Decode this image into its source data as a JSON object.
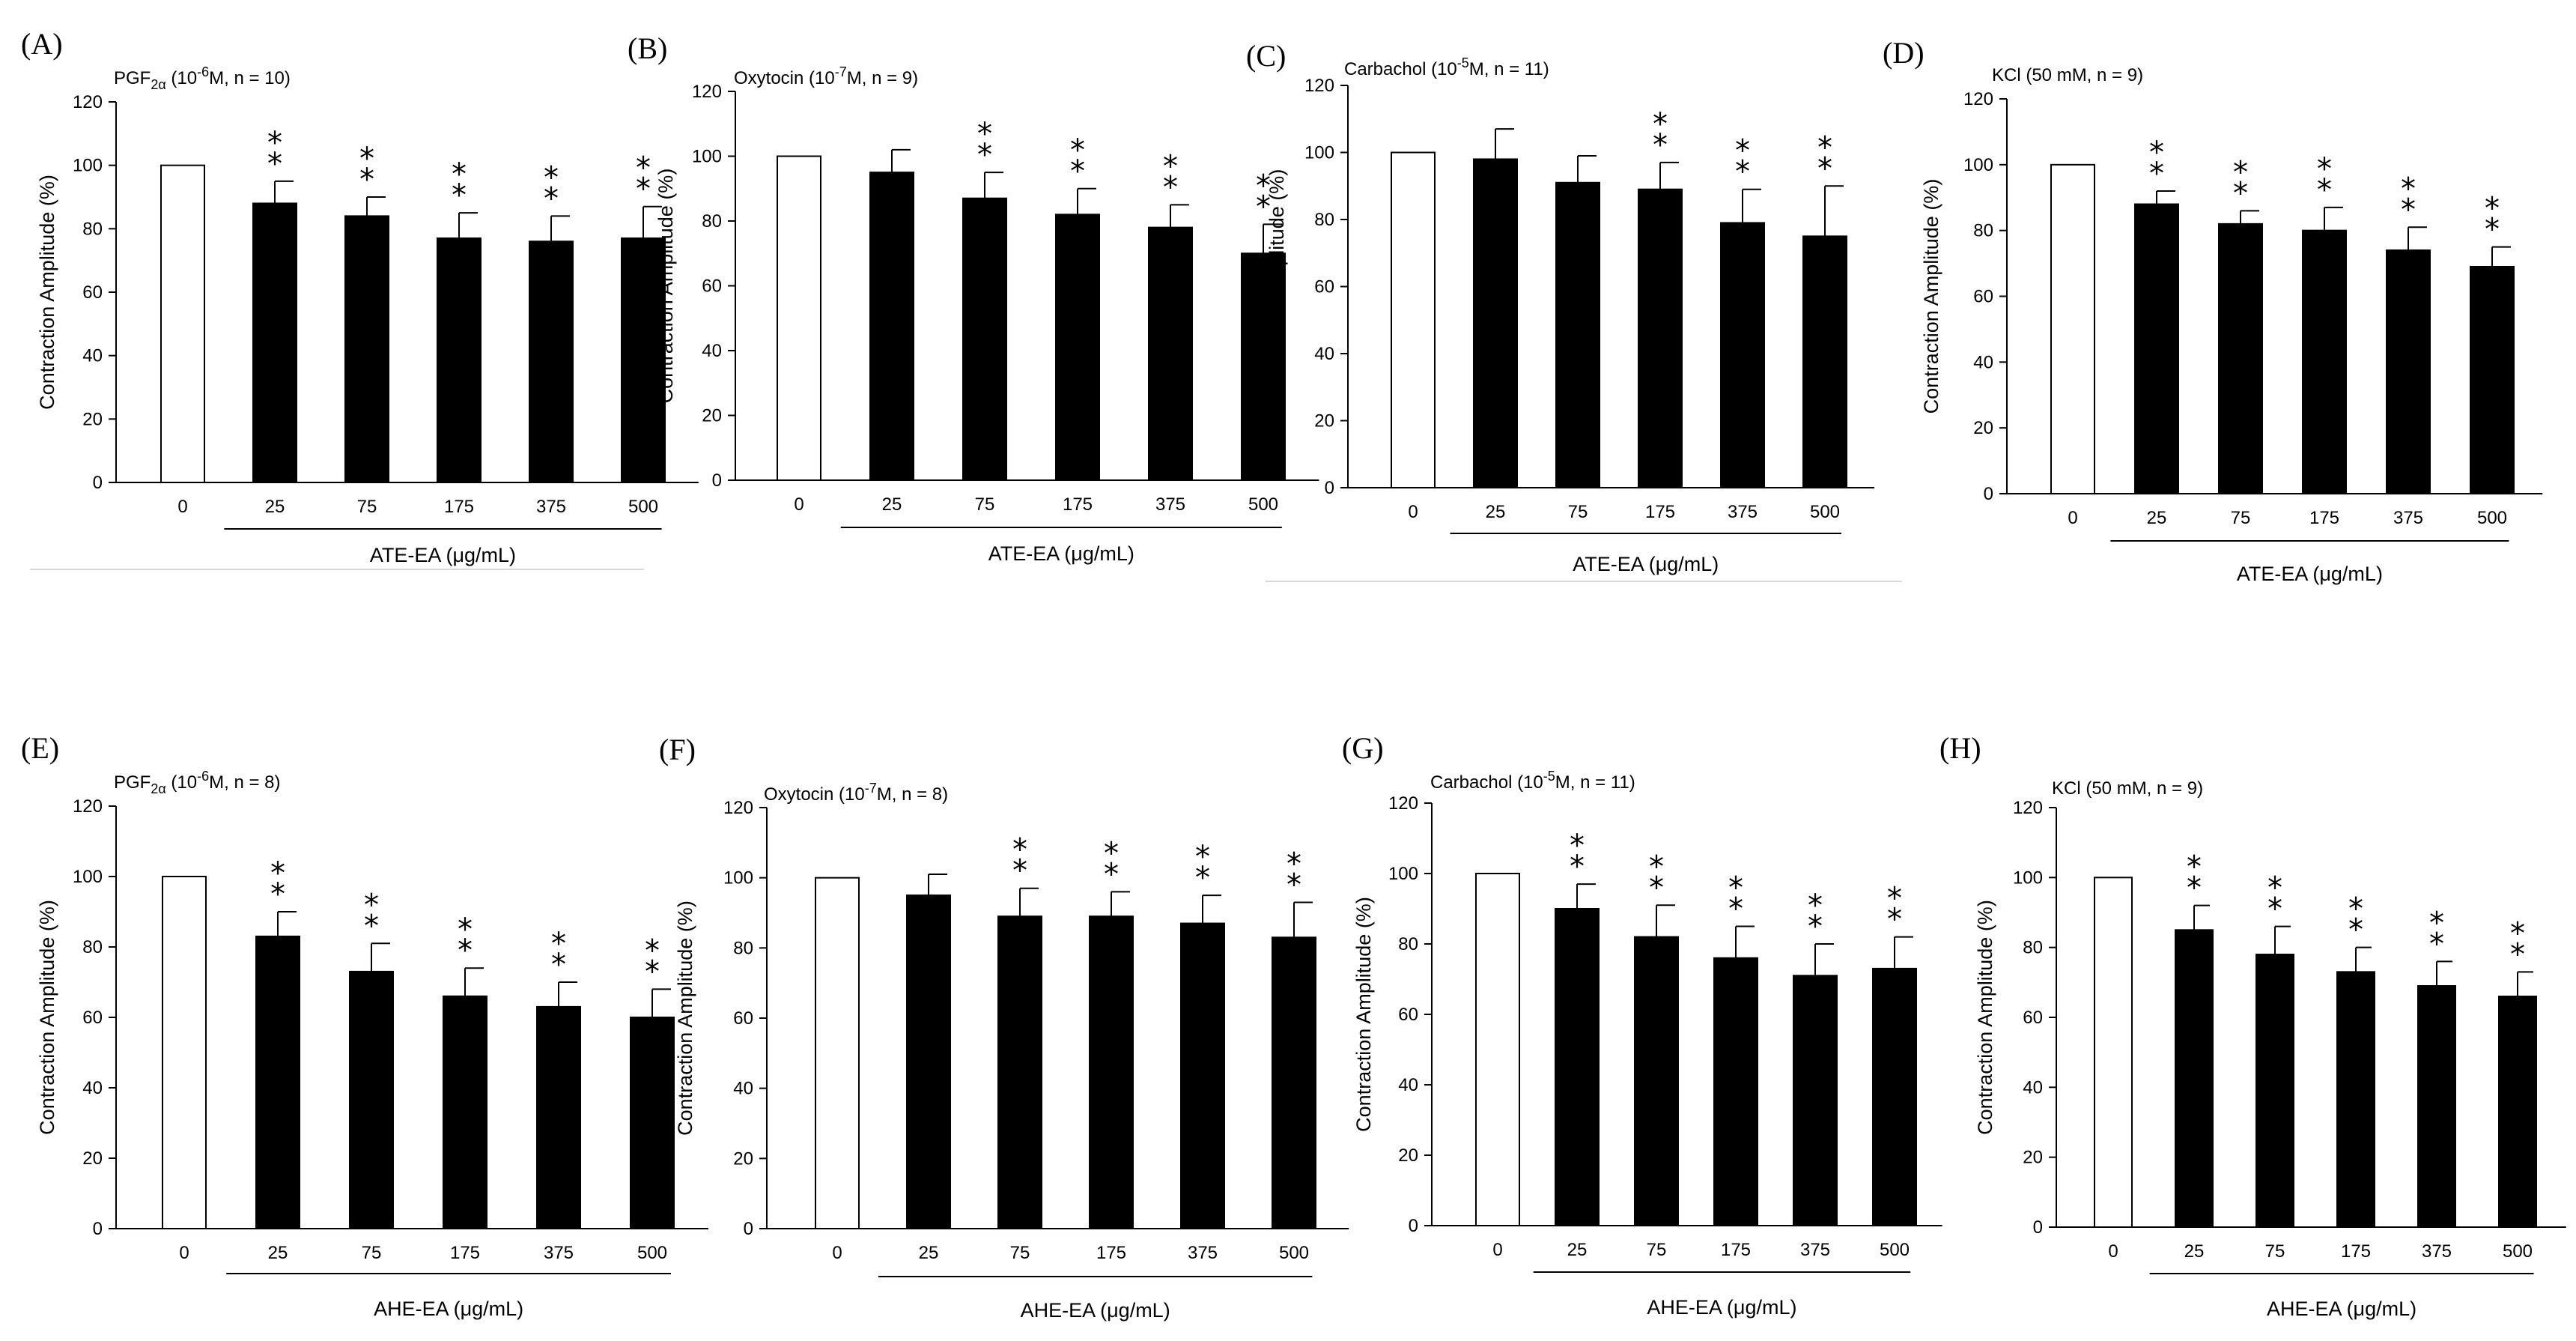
{
  "chart_data": [
    {
      "panel": "(A)",
      "type": "bar",
      "condition": {
        "main": "PGF",
        "sub": "2α",
        "rest": " (10",
        "sup": "-6",
        "tail": "M, n = 10)"
      },
      "categories": [
        "0",
        "25",
        "75",
        "175",
        "375",
        "500"
      ],
      "values": [
        100,
        88,
        84,
        77,
        76,
        77
      ],
      "errors": [
        0,
        7,
        6,
        8,
        8,
        10
      ],
      "significance": [
        "",
        "**",
        "**",
        "**",
        "**",
        "**"
      ],
      "ylabel": "Contraction Amplitude (%)",
      "xlabel": "ATE-EA (μg/mL)",
      "yticks": [
        "0",
        "20",
        "40",
        "60",
        "80",
        "100",
        "120"
      ],
      "ylim": [
        0,
        120
      ]
    },
    {
      "panel": "(B)",
      "type": "bar",
      "condition": {
        "main": "Oxytocin",
        "sub": "",
        "rest": " (10",
        "sup": "-7",
        "tail": "M, n = 9)"
      },
      "categories": [
        "0",
        "25",
        "75",
        "175",
        "375",
        "500"
      ],
      "values": [
        100,
        95,
        87,
        82,
        78,
        70
      ],
      "errors": [
        0,
        7,
        8,
        8,
        7,
        9
      ],
      "significance": [
        "",
        "",
        "**",
        "**",
        "**",
        "**"
      ],
      "ylabel": "Contraction Amplitude (%)",
      "xlabel": "ATE-EA (μg/mL)",
      "yticks": [
        "0",
        "20",
        "40",
        "60",
        "80",
        "100",
        "120"
      ],
      "ylim": [
        0,
        120
      ]
    },
    {
      "panel": "(C)",
      "type": "bar",
      "condition": {
        "main": "Carbachol",
        "sub": "",
        "rest": " (10",
        "sup": "-5",
        "tail": "M, n = 11)"
      },
      "categories": [
        "0",
        "25",
        "75",
        "175",
        "375",
        "500"
      ],
      "values": [
        100,
        98,
        91,
        89,
        79,
        75
      ],
      "errors": [
        0,
        9,
        8,
        8,
        10,
        15
      ],
      "significance": [
        "",
        "",
        "",
        "**",
        "**",
        "**"
      ],
      "ylabel": "Contraction Amplitude (%)",
      "xlabel": "ATE-EA (μg/mL)",
      "yticks": [
        "0",
        "20",
        "40",
        "60",
        "80",
        "100",
        "120"
      ],
      "ylim": [
        0,
        120
      ]
    },
    {
      "panel": "(D)",
      "type": "bar",
      "condition": {
        "main": "KCl",
        "sub": "",
        "rest": " (50 mM, n = 9)",
        "sup": "",
        "tail": ""
      },
      "categories": [
        "0",
        "25",
        "75",
        "175",
        "375",
        "500"
      ],
      "values": [
        100,
        88,
        82,
        80,
        74,
        69
      ],
      "errors": [
        0,
        4,
        4,
        7,
        7,
        6
      ],
      "significance": [
        "",
        "**",
        "**",
        "**",
        "**",
        "**"
      ],
      "ylabel": "Contraction Amplitude (%)",
      "xlabel": "ATE-EA (μg/mL)",
      "yticks": [
        "0",
        "20",
        "40",
        "60",
        "80",
        "100",
        "120"
      ],
      "ylim": [
        0,
        120
      ]
    },
    {
      "panel": "(E)",
      "type": "bar",
      "condition": {
        "main": "PGF",
        "sub": "2α",
        "rest": " (10",
        "sup": "-6",
        "tail": "M, n = 8)"
      },
      "categories": [
        "0",
        "25",
        "75",
        "175",
        "375",
        "500"
      ],
      "values": [
        100,
        83,
        73,
        66,
        63,
        60
      ],
      "errors": [
        0,
        7,
        8,
        8,
        7,
        8
      ],
      "significance": [
        "",
        "**",
        "**",
        "**",
        "**",
        "**"
      ],
      "ylabel": "Contraction Amplitude (%)",
      "xlabel": "AHE-EA (μg/mL)",
      "yticks": [
        "0",
        "20",
        "40",
        "60",
        "80",
        "100",
        "120"
      ],
      "ylim": [
        0,
        120
      ]
    },
    {
      "panel": "(F)",
      "type": "bar",
      "condition": {
        "main": "Oxytocin",
        "sub": "",
        "rest": " (10",
        "sup": "-7",
        "tail": "M, n = 8)"
      },
      "categories": [
        "0",
        "25",
        "75",
        "175",
        "375",
        "500"
      ],
      "values": [
        100,
        95,
        89,
        89,
        87,
        83
      ],
      "errors": [
        0,
        6,
        8,
        7,
        8,
        10
      ],
      "significance": [
        "",
        "",
        "**",
        "**",
        "**",
        "**"
      ],
      "ylabel": "Contraction Amplitude (%)",
      "xlabel": "AHE-EA (μg/mL)",
      "yticks": [
        "0",
        "20",
        "40",
        "60",
        "80",
        "100",
        "120"
      ],
      "ylim": [
        0,
        120
      ]
    },
    {
      "panel": "(G)",
      "type": "bar",
      "condition": {
        "main": "Carbachol",
        "sub": "",
        "rest": " (10",
        "sup": "-5",
        "tail": "M, n = 11)"
      },
      "categories": [
        "0",
        "25",
        "75",
        "175",
        "375",
        "500"
      ],
      "values": [
        100,
        90,
        82,
        76,
        71,
        73
      ],
      "errors": [
        0,
        7,
        9,
        9,
        9,
        9
      ],
      "significance": [
        "",
        "**",
        "**",
        "**",
        "**",
        "**"
      ],
      "ylabel": "Contraction Amplitude (%)",
      "xlabel": "AHE-EA (μg/mL)",
      "yticks": [
        "0",
        "20",
        "40",
        "60",
        "80",
        "100",
        "120"
      ],
      "ylim": [
        0,
        120
      ]
    },
    {
      "panel": "(H)",
      "type": "bar",
      "condition": {
        "main": "KCl",
        "sub": "",
        "rest": " (50 mM, n = 9)",
        "sup": "",
        "tail": ""
      },
      "categories": [
        "0",
        "25",
        "75",
        "175",
        "375",
        "500"
      ],
      "values": [
        100,
        85,
        78,
        73,
        69,
        66
      ],
      "errors": [
        0,
        7,
        8,
        7,
        7,
        7
      ],
      "significance": [
        "",
        "**",
        "**",
        "**",
        "**",
        "**"
      ],
      "ylabel": "Contraction Amplitude (%)",
      "xlabel": "AHE-EA (μg/mL)",
      "yticks": [
        "0",
        "20",
        "40",
        "60",
        "80",
        "100",
        "120"
      ],
      "ylim": [
        0,
        120
      ]
    }
  ]
}
